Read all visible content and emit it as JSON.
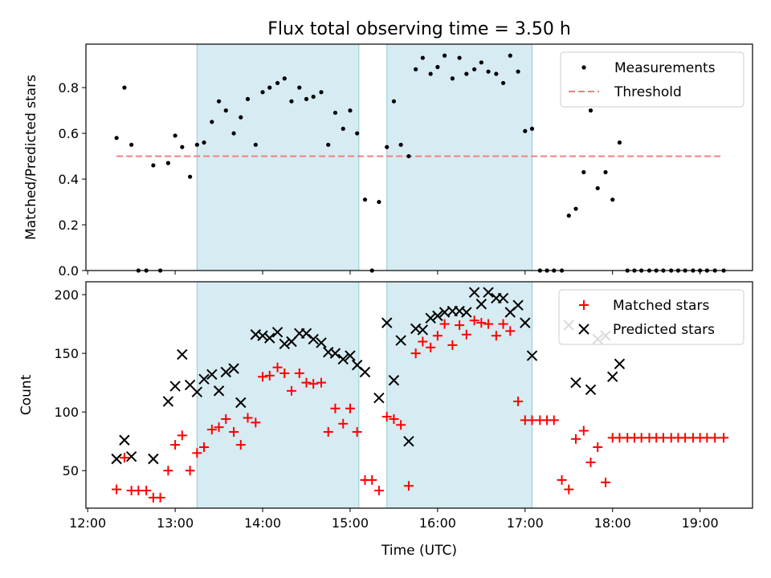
{
  "figure": {
    "title": "Flux total observing time = 3.50 h",
    "xlabel": "Time (UTC)",
    "x_ticks": [
      "12:00",
      "13:00",
      "14:00",
      "15:00",
      "16:00",
      "17:00",
      "18:00",
      "19:00"
    ],
    "shaded_periods": [
      [
        13.25,
        15.1
      ],
      [
        15.42,
        17.08
      ]
    ]
  },
  "chart_data": [
    {
      "type": "scatter",
      "ylabel": "Matched/Predicted stars",
      "xlim": [
        11.98,
        19.6
      ],
      "ylim": [
        0.0,
        0.99
      ],
      "y_ticks": [
        "0.0",
        "0.2",
        "0.4",
        "0.6",
        "0.8"
      ],
      "legend": "top-right",
      "threshold": {
        "name": "Threshold",
        "x": [
          12.33,
          19.27
        ],
        "y": 0.5,
        "color": "#f08080"
      },
      "series": [
        {
          "name": "Measurements",
          "color": "#000000",
          "x": [
            12.33,
            12.42,
            12.5,
            12.58,
            12.67,
            12.75,
            12.83,
            12.92,
            13.0,
            13.08,
            13.17,
            13.25,
            13.33,
            13.42,
            13.5,
            13.58,
            13.67,
            13.75,
            13.83,
            13.92,
            14.0,
            14.08,
            14.17,
            14.25,
            14.33,
            14.42,
            14.5,
            14.58,
            14.67,
            14.75,
            14.83,
            14.92,
            15.0,
            15.08,
            15.17,
            15.25,
            15.33,
            15.42,
            15.5,
            15.58,
            15.67,
            15.75,
            15.83,
            15.92,
            16.0,
            16.08,
            16.17,
            16.25,
            16.33,
            16.42,
            16.5,
            16.58,
            16.67,
            16.75,
            16.83,
            16.92,
            17.0,
            17.08,
            17.17,
            17.25,
            17.33,
            17.42,
            17.5,
            17.58,
            17.67,
            17.75,
            17.83,
            17.92,
            18.0,
            18.08,
            18.17,
            18.25,
            18.33,
            18.42,
            18.5,
            18.58,
            18.67,
            18.75,
            18.83,
            18.92,
            19.0,
            19.08,
            19.17,
            19.27
          ],
          "y": [
            0.58,
            0.8,
            0.55,
            0.0,
            0.0,
            0.46,
            0.0,
            0.47,
            0.59,
            0.54,
            0.41,
            0.55,
            0.56,
            0.65,
            0.74,
            0.7,
            0.6,
            0.67,
            0.75,
            0.55,
            0.78,
            0.8,
            0.82,
            0.84,
            0.74,
            0.8,
            0.75,
            0.76,
            0.78,
            0.55,
            0.69,
            0.62,
            0.7,
            0.6,
            0.31,
            0.0,
            0.3,
            0.54,
            0.74,
            0.55,
            0.5,
            0.88,
            0.93,
            0.86,
            0.89,
            0.94,
            0.84,
            0.93,
            0.86,
            0.88,
            0.91,
            0.87,
            0.86,
            0.82,
            0.94,
            0.87,
            0.61,
            0.62,
            0.0,
            0.0,
            0.0,
            0.0,
            0.24,
            0.27,
            0.43,
            0.7,
            0.36,
            0.43,
            0.31,
            0.56,
            0.0,
            0.0,
            0.0,
            0.0,
            0.0,
            0.0,
            0.0,
            0.0,
            0.0,
            0.0,
            0.0,
            0.0,
            0.0,
            0.0
          ]
        }
      ]
    },
    {
      "type": "scatter",
      "ylabel": "Count",
      "xlim": [
        11.98,
        19.6
      ],
      "ylim": [
        18,
        211
      ],
      "y_ticks": [
        "50",
        "100",
        "150",
        "200"
      ],
      "legend": "top-right",
      "series": [
        {
          "name": "Matched stars",
          "color": "#ff0000",
          "x": [
            12.33,
            12.42,
            12.5,
            12.58,
            12.67,
            12.75,
            12.83,
            12.92,
            13.0,
            13.08,
            13.17,
            13.25,
            13.33,
            13.42,
            13.5,
            13.58,
            13.67,
            13.75,
            13.83,
            13.92,
            14.0,
            14.08,
            14.17,
            14.25,
            14.33,
            14.42,
            14.5,
            14.58,
            14.67,
            14.75,
            14.83,
            14.92,
            15.0,
            15.08,
            15.17,
            15.25,
            15.33,
            15.42,
            15.5,
            15.58,
            15.67,
            15.75,
            15.83,
            15.92,
            16.0,
            16.08,
            16.17,
            16.25,
            16.33,
            16.42,
            16.5,
            16.58,
            16.67,
            16.75,
            16.83,
            16.92,
            17.0,
            17.08,
            17.17,
            17.25,
            17.33,
            17.42,
            17.5,
            17.58,
            17.67,
            17.75,
            17.83,
            17.92,
            18.0,
            18.08,
            18.17,
            18.25,
            18.33,
            18.42,
            18.5,
            18.58,
            18.67,
            18.75,
            18.83,
            18.92,
            19.0,
            19.08,
            19.17,
            19.27
          ],
          "y": [
            34,
            61,
            33,
            33,
            33,
            27,
            27,
            50,
            72,
            80,
            50,
            65,
            70,
            85,
            87,
            94,
            83,
            72,
            95,
            91,
            130,
            131,
            138,
            133,
            118,
            133,
            125,
            124,
            125,
            83,
            103,
            90,
            103,
            83,
            42,
            42,
            33,
            96,
            94,
            89,
            37,
            150,
            160,
            155,
            165,
            175,
            157,
            174,
            166,
            178,
            176,
            175,
            165,
            175,
            169,
            109,
            93,
            93,
            93,
            93,
            93,
            42,
            34,
            77,
            84,
            57,
            70,
            40,
            78,
            78,
            78,
            78,
            78,
            78,
            78,
            78,
            78,
            78,
            78,
            78,
            78,
            78,
            78,
            78
          ]
        },
        {
          "name": "Predicted stars",
          "color": "#000000",
          "x": [
            12.33,
            12.42,
            12.5,
            12.75,
            12.92,
            13.0,
            13.08,
            13.17,
            13.25,
            13.33,
            13.42,
            13.5,
            13.58,
            13.67,
            13.75,
            13.92,
            14.0,
            14.08,
            14.17,
            14.25,
            14.33,
            14.42,
            14.5,
            14.58,
            14.67,
            14.75,
            14.83,
            14.92,
            15.0,
            15.08,
            15.17,
            15.33,
            15.42,
            15.5,
            15.58,
            15.67,
            15.75,
            15.83,
            15.92,
            16.0,
            16.08,
            16.17,
            16.25,
            16.33,
            16.42,
            16.5,
            16.58,
            16.67,
            16.75,
            16.83,
            16.92,
            17.0,
            17.08,
            17.5,
            17.58,
            17.75,
            17.83,
            17.92,
            18.0,
            18.08
          ],
          "y": [
            60,
            76,
            62,
            60,
            109,
            122,
            149,
            123,
            117,
            128,
            132,
            118,
            134,
            137,
            108,
            166,
            165,
            163,
            168,
            158,
            160,
            167,
            167,
            162,
            159,
            151,
            150,
            145,
            148,
            140,
            134,
            112,
            176,
            127,
            161,
            75,
            171,
            170,
            180,
            182,
            185,
            186,
            186,
            185,
            202,
            192,
            202,
            197,
            197,
            185,
            191,
            176,
            148,
            174,
            125,
            119,
            162,
            165,
            130,
            141
          ]
        }
      ]
    }
  ]
}
